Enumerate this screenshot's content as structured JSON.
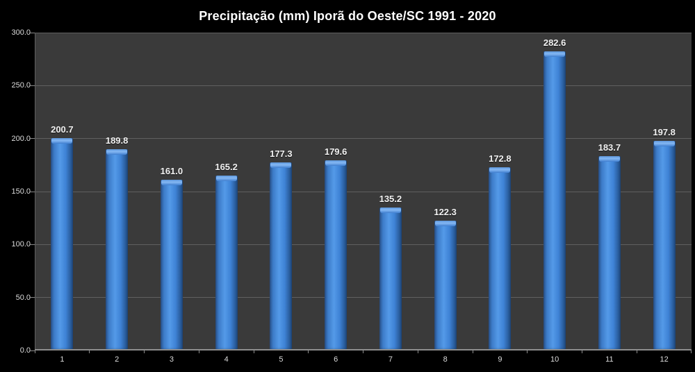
{
  "chart_data": {
    "type": "bar",
    "title": "Precipitação (mm) Iporã do Oeste/SC 1991 - 2020",
    "xlabel": "",
    "ylabel": "",
    "categories": [
      "1",
      "2",
      "3",
      "4",
      "5",
      "6",
      "7",
      "8",
      "9",
      "10",
      "11",
      "12"
    ],
    "values": [
      200.7,
      189.8,
      161.0,
      165.2,
      177.3,
      179.6,
      135.2,
      122.3,
      172.8,
      282.6,
      183.7,
      197.8
    ],
    "value_labels": [
      "200.7",
      "189.8",
      "161.0",
      "165.2",
      "177.3",
      "179.6",
      "135.2",
      "122.3",
      "172.8",
      "282.6",
      "183.7",
      "197.8"
    ],
    "ylim": [
      0,
      300
    ],
    "y_ticks": [
      {
        "value": 300,
        "label": "300.0"
      },
      {
        "value": 250,
        "label": "250.0"
      },
      {
        "value": 200,
        "label": "200.0"
      },
      {
        "value": 150,
        "label": "150.0"
      },
      {
        "value": 100,
        "label": "100.0"
      },
      {
        "value": 50,
        "label": "50.0"
      },
      {
        "value": 0,
        "label": "0.0"
      }
    ],
    "grid": true,
    "legend": "none"
  },
  "colors": {
    "background": "#000000",
    "plot_bg": "#3a3a3a",
    "gridline": "#606060",
    "axis": "#8f8f8f",
    "tick": "#8c8c8c",
    "tick_label": "#dcdcdc",
    "value_label": "#f2f2f2",
    "bar_edge_l": "#2a548e",
    "bar_mid": "#3d7cc9",
    "bar_light": "#549ae8",
    "bar_mid2": "#3e82d5",
    "bar_edge_r": "#1f4a80",
    "bar_bevel_hi": "#5d97dd",
    "bar_bevel_hi2": "#85b8f3",
    "bar_bevel_lo": "#3f7ecf"
  }
}
